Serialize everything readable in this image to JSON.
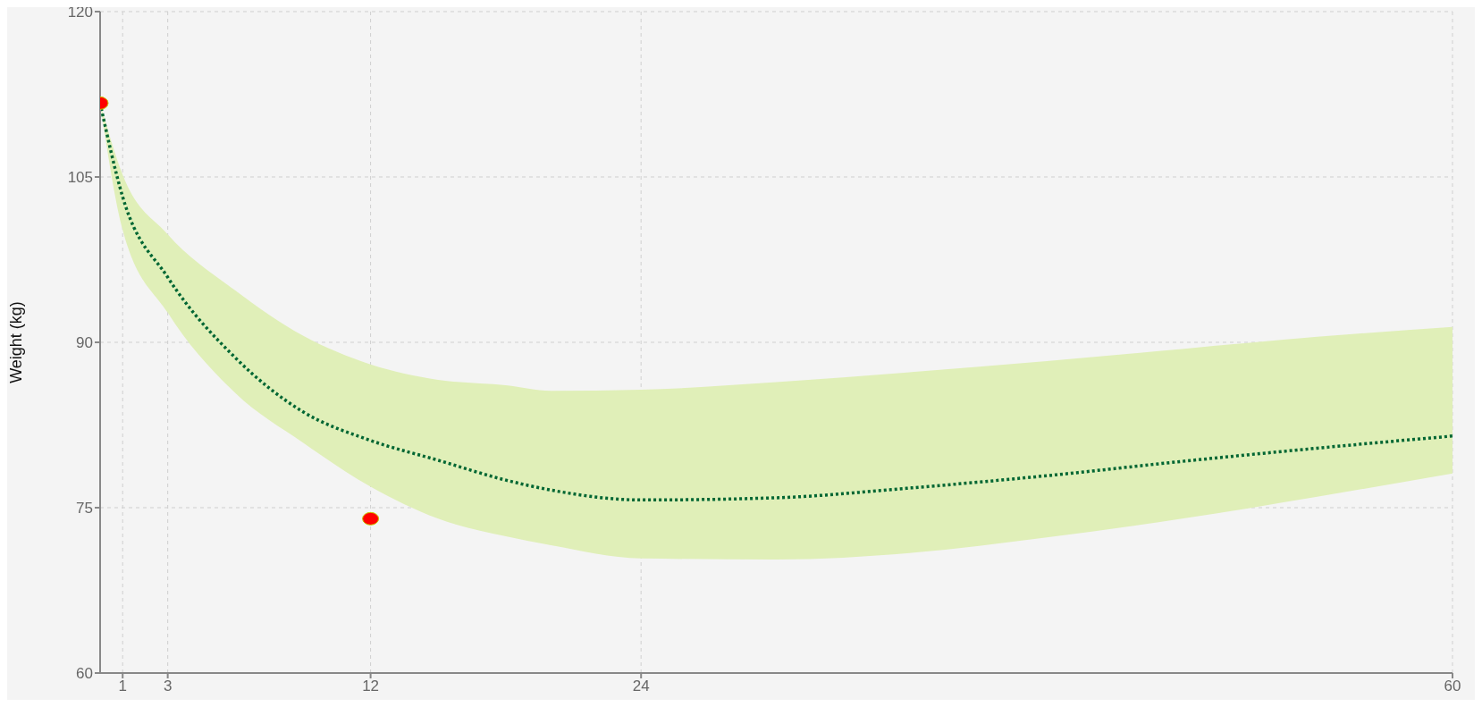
{
  "chart_data": {
    "type": "line",
    "ylabel": "Weight (kg)",
    "xlim": [
      0,
      60
    ],
    "xticks": [
      1,
      3,
      12,
      24,
      60
    ],
    "ylim": [
      60,
      120
    ],
    "yticks": [
      60,
      75,
      90,
      105,
      120
    ],
    "grid": true,
    "series": [
      {
        "color": "#006633",
        "line_style": "dotted",
        "marker": "none",
        "x": [
          0,
          1,
          3,
          6,
          9,
          12,
          15,
          18,
          20,
          24,
          30,
          36,
          42,
          48,
          54,
          60
        ],
        "values": [
          111.7,
          103.2,
          95.9,
          88.6,
          83.7,
          81.1,
          79.3,
          77.5,
          76.6,
          75.7,
          75.9,
          76.8,
          77.9,
          79.2,
          80.4,
          81.5
        ],
        "lower": [
          111.7,
          100.2,
          92.7,
          85.4,
          80.9,
          76.9,
          74.0,
          72.4,
          71.6,
          70.4,
          70.3,
          70.9,
          72.3,
          74.0,
          76.0,
          78.1
        ],
        "upper": [
          111.7,
          105.2,
          99.8,
          94.7,
          90.6,
          88.0,
          86.6,
          86.1,
          85.6,
          85.7,
          86.4,
          87.3,
          88.3,
          89.4,
          90.5,
          91.4
        ]
      },
      {
        "type": "scatter",
        "color": "#ff0000",
        "marker": "circle",
        "x": [
          0,
          12
        ],
        "values": [
          111.7,
          74.0
        ]
      }
    ]
  }
}
